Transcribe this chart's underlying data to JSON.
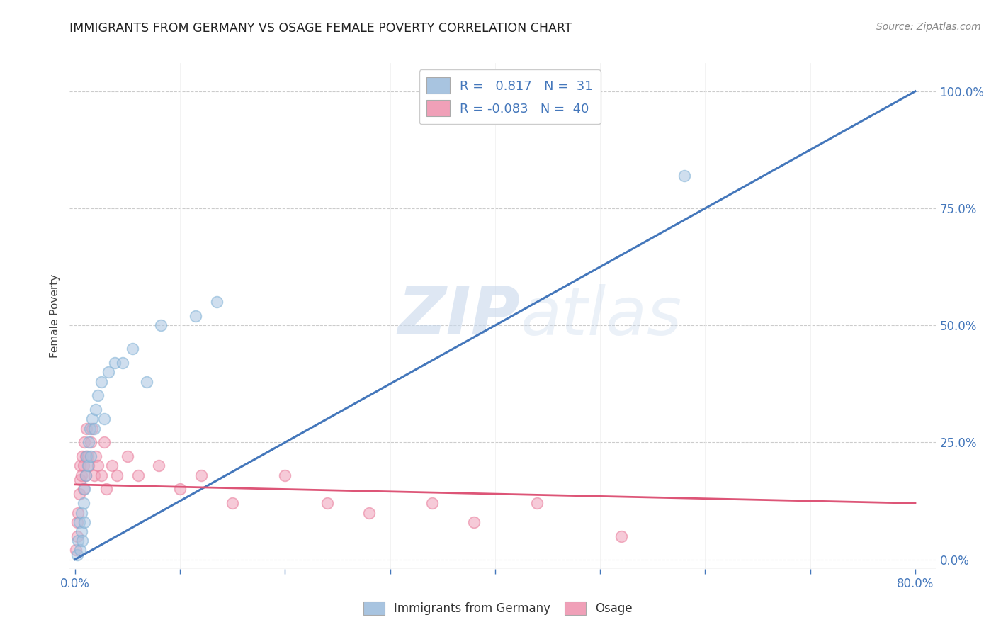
{
  "title": "IMMIGRANTS FROM GERMANY VS OSAGE FEMALE POVERTY CORRELATION CHART",
  "source": "Source: ZipAtlas.com",
  "xlabel_blue": "Immigrants from Germany",
  "xlabel_pink": "Osage",
  "ylabel": "Female Poverty",
  "R_blue": 0.817,
  "N_blue": 31,
  "R_pink": -0.083,
  "N_pink": 40,
  "watermark_zip": "ZIP",
  "watermark_atlas": "atlas",
  "blue_color": "#a8c4e0",
  "blue_edge_color": "#7aaed4",
  "pink_color": "#f0a0b8",
  "pink_edge_color": "#e87898",
  "blue_line_color": "#4477bb",
  "pink_line_color": "#dd5577",
  "title_color": "#222222",
  "source_color": "#888888",
  "tick_color": "#4477bb",
  "ylabel_color": "#444444",
  "grid_color": "#cccccc",
  "background_color": "#ffffff",
  "blue_scatter_x": [
    0.002,
    0.003,
    0.004,
    0.005,
    0.006,
    0.006,
    0.007,
    0.008,
    0.009,
    0.009,
    0.01,
    0.011,
    0.012,
    0.013,
    0.014,
    0.015,
    0.016,
    0.018,
    0.02,
    0.022,
    0.025,
    0.028,
    0.032,
    0.038,
    0.045,
    0.055,
    0.068,
    0.082,
    0.115,
    0.135,
    0.58
  ],
  "blue_scatter_y": [
    0.01,
    0.04,
    0.08,
    0.02,
    0.06,
    0.1,
    0.04,
    0.12,
    0.15,
    0.08,
    0.18,
    0.22,
    0.2,
    0.25,
    0.28,
    0.22,
    0.3,
    0.28,
    0.32,
    0.35,
    0.38,
    0.3,
    0.4,
    0.42,
    0.42,
    0.45,
    0.38,
    0.5,
    0.52,
    0.55,
    0.82
  ],
  "pink_scatter_x": [
    0.001,
    0.002,
    0.002,
    0.003,
    0.004,
    0.005,
    0.005,
    0.006,
    0.007,
    0.008,
    0.008,
    0.009,
    0.01,
    0.01,
    0.011,
    0.012,
    0.013,
    0.015,
    0.016,
    0.018,
    0.02,
    0.022,
    0.025,
    0.028,
    0.03,
    0.035,
    0.04,
    0.05,
    0.06,
    0.08,
    0.1,
    0.12,
    0.15,
    0.2,
    0.24,
    0.28,
    0.34,
    0.38,
    0.44,
    0.52
  ],
  "pink_scatter_y": [
    0.02,
    0.05,
    0.08,
    0.1,
    0.14,
    0.17,
    0.2,
    0.18,
    0.22,
    0.15,
    0.2,
    0.25,
    0.18,
    0.22,
    0.28,
    0.22,
    0.2,
    0.25,
    0.28,
    0.18,
    0.22,
    0.2,
    0.18,
    0.25,
    0.15,
    0.2,
    0.18,
    0.22,
    0.18,
    0.2,
    0.15,
    0.18,
    0.12,
    0.18,
    0.12,
    0.1,
    0.12,
    0.08,
    0.12,
    0.05
  ],
  "blue_line_x": [
    0.0,
    0.8
  ],
  "blue_line_y": [
    0.0,
    1.0
  ],
  "pink_line_x": [
    0.0,
    0.8
  ],
  "pink_line_y": [
    0.16,
    0.12
  ],
  "xlim": [
    0.0,
    0.82
  ],
  "ylim": [
    0.0,
    1.06
  ],
  "xtick_positions": [
    0.0,
    0.1,
    0.2,
    0.3,
    0.4,
    0.5,
    0.6,
    0.7,
    0.8
  ],
  "ytick_positions": [
    0.0,
    0.25,
    0.5,
    0.75,
    1.0
  ],
  "scatter_size": 130,
  "scatter_alpha": 0.55
}
